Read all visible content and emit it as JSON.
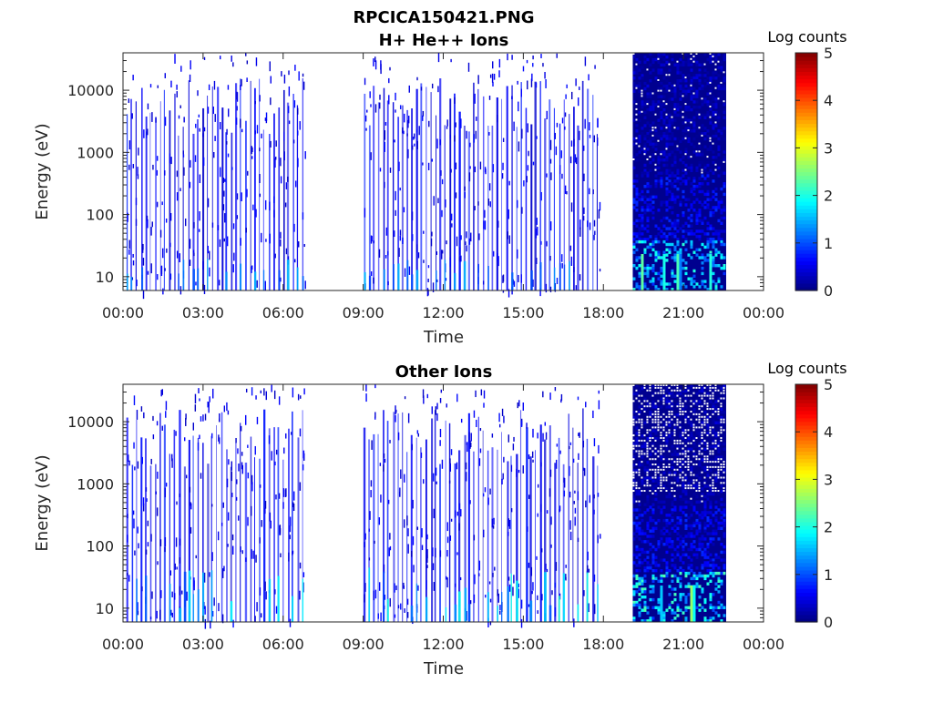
{
  "chart_data": {
    "title_line1": "RPCICA150421.PNG",
    "xlabel": "Time",
    "ylabel": "Energy (eV)",
    "colorbar_label": "Log counts",
    "x_tick_labels": [
      "00:00",
      "03:00",
      "06:00",
      "09:00",
      "12:00",
      "15:00",
      "18:00",
      "21:00",
      "00:00"
    ],
    "y_tick_values": [
      10,
      100,
      1000,
      10000
    ],
    "y_tick_labels": [
      "10",
      "100",
      "1000",
      "10000"
    ],
    "y_scale": "log",
    "ylim": [
      6,
      40000
    ],
    "xlim_hours": [
      0,
      24
    ],
    "colorbar_ticks": [
      "0",
      "1",
      "2",
      "3",
      "4",
      "5"
    ],
    "colorbar_range": [
      0,
      5
    ],
    "colormap": "jet",
    "panels": [
      {
        "type": "heatmap",
        "title": "H+ He++ Ions",
        "segments": [
          {
            "start_hour": 0.1,
            "end_hour": 6.85,
            "style": "sparse-sweeps",
            "max_log_counts": 1.5
          },
          {
            "start_hour": 9.0,
            "end_hour": 17.9,
            "style": "sparse-sweeps",
            "max_log_counts": 1.5
          },
          {
            "start_hour": 19.1,
            "end_hour": 22.6,
            "style": "dense",
            "max_log_counts": 2.2
          }
        ]
      },
      {
        "type": "heatmap",
        "title": "Other Ions",
        "segments": [
          {
            "start_hour": 0.1,
            "end_hour": 6.85,
            "style": "sparse-sweeps",
            "max_log_counts": 1.8
          },
          {
            "start_hour": 9.0,
            "end_hour": 17.9,
            "style": "sparse-sweeps",
            "max_log_counts": 2.0
          },
          {
            "start_hour": 19.1,
            "end_hour": 22.6,
            "style": "dense",
            "max_log_counts": 2.5
          }
        ]
      }
    ]
  }
}
